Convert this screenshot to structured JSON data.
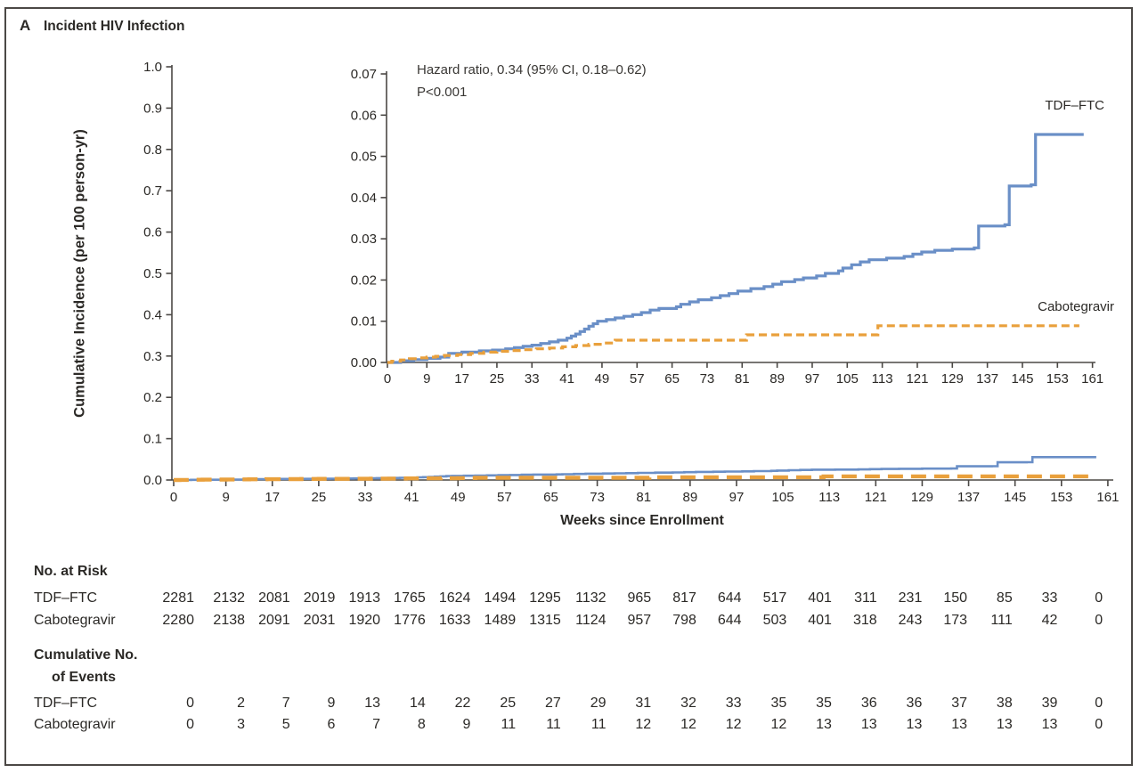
{
  "title": {
    "panel": "A",
    "text": "Incident HIV Infection"
  },
  "colors": {
    "tdf_blue": "#6A8FC7",
    "cabotegravir_orange": "#E9A03C",
    "axis": "#4B4845",
    "text": "#2B2926",
    "frame_border": "#4B4845",
    "background": "#FFFFFF"
  },
  "chart_data": {
    "type": "line",
    "subtype": "step-cumulative-incidence",
    "panel": "A",
    "title": "Incident HIV Infection",
    "xlabel": "Weeks since Enrollment",
    "ylabel": "Cumulative Incidence (per 100 person-yr)",
    "grid": false,
    "legend_position": "inline-right",
    "x_ticks": [
      0,
      9,
      17,
      25,
      33,
      41,
      49,
      57,
      65,
      73,
      81,
      89,
      97,
      105,
      113,
      121,
      129,
      137,
      145,
      153,
      161
    ],
    "main_axis": {
      "ylim": [
        0.0,
        1.0
      ],
      "y_tick_labels": [
        "0.0",
        "0.1",
        "0.2",
        "0.3",
        "0.4",
        "0.5",
        "0.6",
        "0.7",
        "0.8",
        "0.9",
        "1.0"
      ]
    },
    "inset_axis": {
      "ylim": [
        0.0,
        0.07
      ],
      "y_tick_labels": [
        "0.00",
        "0.01",
        "0.02",
        "0.03",
        "0.04",
        "0.05",
        "0.06",
        "0.07"
      ]
    },
    "annotation": {
      "line1": "Hazard ratio, 0.34 (95% CI, 0.18–0.62)",
      "line2": "P<0.001"
    },
    "series": [
      {
        "name": "TDF–FTC",
        "color": "#6A8FC7",
        "line_style": "solid",
        "points": [
          [
            0,
            0
          ],
          [
            3,
            0.0004
          ],
          [
            6,
            0.0007
          ],
          [
            9,
            0.001
          ],
          [
            12,
            0.0013
          ],
          [
            14,
            0.0022
          ],
          [
            17,
            0.0025
          ],
          [
            21,
            0.0028
          ],
          [
            24,
            0.003
          ],
          [
            27,
            0.0033
          ],
          [
            29,
            0.0036
          ],
          [
            31,
            0.0039
          ],
          [
            33,
            0.0042
          ],
          [
            35,
            0.0046
          ],
          [
            37,
            0.005
          ],
          [
            39,
            0.0054
          ],
          [
            41,
            0.0059
          ],
          [
            42,
            0.0064
          ],
          [
            43,
            0.0069
          ],
          [
            44,
            0.0075
          ],
          [
            45,
            0.0081
          ],
          [
            46,
            0.0088
          ],
          [
            47,
            0.0094
          ],
          [
            48,
            0.01
          ],
          [
            50,
            0.0104
          ],
          [
            52,
            0.0108
          ],
          [
            54,
            0.0112
          ],
          [
            56,
            0.0116
          ],
          [
            58,
            0.0121
          ],
          [
            60,
            0.0127
          ],
          [
            62,
            0.0131
          ],
          [
            66,
            0.0135
          ],
          [
            67,
            0.0141
          ],
          [
            69,
            0.0147
          ],
          [
            71,
            0.0152
          ],
          [
            74,
            0.0157
          ],
          [
            76,
            0.0162
          ],
          [
            78,
            0.0167
          ],
          [
            80,
            0.0173
          ],
          [
            83,
            0.0179
          ],
          [
            86,
            0.0184
          ],
          [
            88,
            0.019
          ],
          [
            90,
            0.0196
          ],
          [
            93,
            0.0201
          ],
          [
            95,
            0.0205
          ],
          [
            98,
            0.021
          ],
          [
            100,
            0.0216
          ],
          [
            103,
            0.0222
          ],
          [
            104,
            0.0229
          ],
          [
            106,
            0.0237
          ],
          [
            108,
            0.0244
          ],
          [
            110,
            0.0249
          ],
          [
            114,
            0.0253
          ],
          [
            118,
            0.0257
          ],
          [
            120,
            0.0263
          ],
          [
            122,
            0.0268
          ],
          [
            125,
            0.0272
          ],
          [
            129,
            0.0275
          ],
          [
            134,
            0.0278
          ],
          [
            135,
            0.0331
          ],
          [
            141,
            0.0334
          ],
          [
            142,
            0.0428
          ],
          [
            147,
            0.0431
          ],
          [
            148,
            0.0553
          ],
          [
            159,
            0.0553
          ]
        ]
      },
      {
        "name": "Cabotegravir",
        "color": "#E9A03C",
        "line_style": "dashed",
        "points": [
          [
            0,
            0
          ],
          [
            1,
            0.0003
          ],
          [
            3,
            0.0006
          ],
          [
            5,
            0.0009
          ],
          [
            7,
            0.0011
          ],
          [
            9,
            0.0013
          ],
          [
            11,
            0.0015
          ],
          [
            13,
            0.0017
          ],
          [
            16,
            0.0019
          ],
          [
            19,
            0.0022
          ],
          [
            22,
            0.0025
          ],
          [
            25,
            0.0027
          ],
          [
            28,
            0.0029
          ],
          [
            31,
            0.0031
          ],
          [
            34,
            0.0033
          ],
          [
            37,
            0.0035
          ],
          [
            40,
            0.0038
          ],
          [
            43,
            0.0041
          ],
          [
            46,
            0.0044
          ],
          [
            49,
            0.0047
          ],
          [
            52,
            0.0054
          ],
          [
            81,
            0.0054
          ],
          [
            82,
            0.0067
          ],
          [
            111,
            0.0067
          ],
          [
            112,
            0.0089
          ],
          [
            158,
            0.0089
          ]
        ]
      }
    ]
  },
  "tables": {
    "risk": {
      "header": "No. at Risk",
      "rows": [
        {
          "label": "TDF–FTC",
          "values": [
            2281,
            2132,
            2081,
            2019,
            1913,
            1765,
            1624,
            1494,
            1295,
            1132,
            965,
            817,
            644,
            517,
            401,
            311,
            231,
            150,
            85,
            33,
            0
          ]
        },
        {
          "label": "Cabotegravir",
          "values": [
            2280,
            2138,
            2091,
            2031,
            1920,
            1776,
            1633,
            1489,
            1315,
            1124,
            957,
            798,
            644,
            503,
            401,
            318,
            243,
            173,
            111,
            42,
            0
          ]
        }
      ]
    },
    "events": {
      "header_line1": "Cumulative No.",
      "header_line2": "of Events",
      "rows": [
        {
          "label": "TDF–FTC",
          "values": [
            0,
            2,
            7,
            9,
            13,
            14,
            22,
            25,
            27,
            29,
            31,
            32,
            33,
            35,
            35,
            36,
            36,
            37,
            38,
            39,
            0
          ]
        },
        {
          "label": "Cabotegravir",
          "values": [
            0,
            3,
            5,
            6,
            7,
            8,
            9,
            11,
            11,
            11,
            12,
            12,
            12,
            12,
            13,
            13,
            13,
            13,
            13,
            13,
            0
          ]
        }
      ]
    }
  }
}
